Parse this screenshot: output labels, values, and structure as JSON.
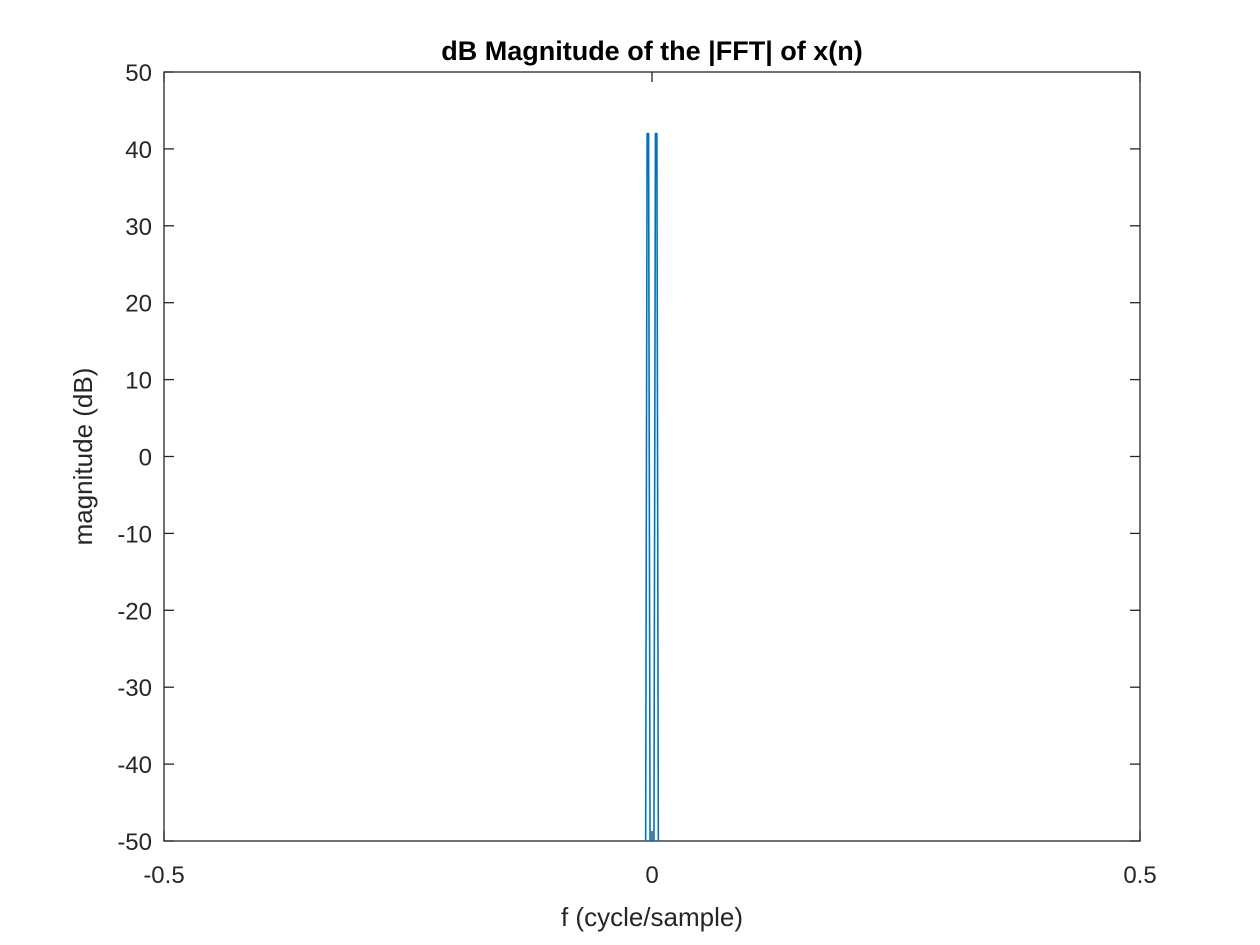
{
  "chart_data": {
    "type": "line",
    "title": "dB Magnitude of the |FFT| of x(n)",
    "xlabel": "f (cycle/sample)",
    "ylabel": "magnitude (dB)",
    "xlim": [
      -0.5,
      0.5
    ],
    "ylim": [
      -50,
      50
    ],
    "xticks": [
      -0.5,
      0,
      0.5
    ],
    "xtick_labels": [
      "-0.5",
      "0",
      "0.5"
    ],
    "yticks": [
      -50,
      -40,
      -30,
      -20,
      -10,
      0,
      10,
      20,
      30,
      40,
      50
    ],
    "ytick_labels": [
      "-50",
      "-40",
      "-30",
      "-20",
      "-10",
      "0",
      "10",
      "20",
      "30",
      "40",
      "50"
    ],
    "grid": false,
    "line_color": "#0072BD",
    "axis_color": "#262626",
    "series": [
      {
        "x": [
          -0.0065,
          -0.005,
          -0.0035,
          -0.002,
          0.002,
          0.0035,
          0.005,
          0.0065
        ],
        "y": [
          -50,
          42,
          42,
          -50,
          -50,
          42,
          42,
          -50
        ]
      }
    ]
  }
}
